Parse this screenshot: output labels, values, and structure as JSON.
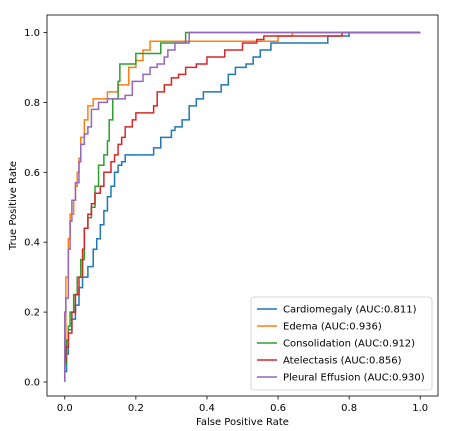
{
  "chart_data": {
    "type": "line",
    "xlabel": "False Positive Rate",
    "ylabel": "True Positive Rate",
    "xlim": [
      -0.05,
      1.05
    ],
    "ylim": [
      -0.04,
      1.05
    ],
    "xticks": [
      0.0,
      0.2,
      0.4,
      0.6,
      0.8,
      1.0
    ],
    "yticks": [
      0.0,
      0.2,
      0.4,
      0.6,
      0.8,
      1.0
    ],
    "xtick_labels": [
      "0.0",
      "0.2",
      "0.4",
      "0.6",
      "0.8",
      "1.0"
    ],
    "ytick_labels": [
      "0.0",
      "0.2",
      "0.4",
      "0.6",
      "0.8",
      "1.0"
    ],
    "grid": false,
    "legend_position": "lower-right",
    "series": [
      {
        "name": "Cardiomegaly (AUC:0.811)",
        "color": "#1f77b4",
        "points": [
          [
            0.0,
            0.0
          ],
          [
            0.0,
            0.03
          ],
          [
            0.005,
            0.03
          ],
          [
            0.005,
            0.08
          ],
          [
            0.01,
            0.08
          ],
          [
            0.01,
            0.15
          ],
          [
            0.02,
            0.15
          ],
          [
            0.02,
            0.18
          ],
          [
            0.03,
            0.18
          ],
          [
            0.03,
            0.22
          ],
          [
            0.04,
            0.22
          ],
          [
            0.04,
            0.27
          ],
          [
            0.05,
            0.27
          ],
          [
            0.05,
            0.3
          ],
          [
            0.065,
            0.3
          ],
          [
            0.065,
            0.33
          ],
          [
            0.08,
            0.33
          ],
          [
            0.08,
            0.38
          ],
          [
            0.09,
            0.38
          ],
          [
            0.09,
            0.41
          ],
          [
            0.1,
            0.41
          ],
          [
            0.1,
            0.45
          ],
          [
            0.11,
            0.45
          ],
          [
            0.11,
            0.49
          ],
          [
            0.12,
            0.49
          ],
          [
            0.12,
            0.53
          ],
          [
            0.13,
            0.53
          ],
          [
            0.13,
            0.56
          ],
          [
            0.14,
            0.56
          ],
          [
            0.14,
            0.6
          ],
          [
            0.15,
            0.6
          ],
          [
            0.15,
            0.62
          ],
          [
            0.16,
            0.62
          ],
          [
            0.16,
            0.63
          ],
          [
            0.17,
            0.63
          ],
          [
            0.17,
            0.65
          ],
          [
            0.25,
            0.65
          ],
          [
            0.25,
            0.67
          ],
          [
            0.27,
            0.67
          ],
          [
            0.27,
            0.7
          ],
          [
            0.3,
            0.7
          ],
          [
            0.3,
            0.72
          ],
          [
            0.31,
            0.72
          ],
          [
            0.31,
            0.73
          ],
          [
            0.33,
            0.73
          ],
          [
            0.33,
            0.75
          ],
          [
            0.35,
            0.75
          ],
          [
            0.35,
            0.79
          ],
          [
            0.37,
            0.79
          ],
          [
            0.37,
            0.81
          ],
          [
            0.39,
            0.81
          ],
          [
            0.39,
            0.83
          ],
          [
            0.44,
            0.83
          ],
          [
            0.44,
            0.85
          ],
          [
            0.46,
            0.85
          ],
          [
            0.46,
            0.88
          ],
          [
            0.48,
            0.88
          ],
          [
            0.48,
            0.9
          ],
          [
            0.51,
            0.9
          ],
          [
            0.51,
            0.91
          ],
          [
            0.53,
            0.91
          ],
          [
            0.53,
            0.93
          ],
          [
            0.55,
            0.93
          ],
          [
            0.55,
            0.95
          ],
          [
            0.58,
            0.95
          ],
          [
            0.58,
            0.97
          ],
          [
            0.74,
            0.97
          ],
          [
            0.74,
            0.99
          ],
          [
            0.8,
            0.99
          ],
          [
            0.8,
            1.0
          ],
          [
            1.0,
            1.0
          ]
        ]
      },
      {
        "name": "Edema (AUC:0.936)",
        "color": "#ff7f0e",
        "points": [
          [
            0.0,
            0.0
          ],
          [
            0.0,
            0.05
          ],
          [
            0.003,
            0.05
          ],
          [
            0.003,
            0.3
          ],
          [
            0.01,
            0.3
          ],
          [
            0.01,
            0.41
          ],
          [
            0.015,
            0.41
          ],
          [
            0.015,
            0.48
          ],
          [
            0.025,
            0.48
          ],
          [
            0.025,
            0.52
          ],
          [
            0.03,
            0.52
          ],
          [
            0.03,
            0.56
          ],
          [
            0.035,
            0.56
          ],
          [
            0.035,
            0.6
          ],
          [
            0.04,
            0.6
          ],
          [
            0.04,
            0.64
          ],
          [
            0.045,
            0.64
          ],
          [
            0.045,
            0.7
          ],
          [
            0.055,
            0.7
          ],
          [
            0.055,
            0.75
          ],
          [
            0.065,
            0.75
          ],
          [
            0.065,
            0.79
          ],
          [
            0.08,
            0.79
          ],
          [
            0.08,
            0.81
          ],
          [
            0.12,
            0.81
          ],
          [
            0.12,
            0.83
          ],
          [
            0.15,
            0.83
          ],
          [
            0.15,
            0.85
          ],
          [
            0.18,
            0.85
          ],
          [
            0.18,
            0.9
          ],
          [
            0.2,
            0.9
          ],
          [
            0.2,
            0.92
          ],
          [
            0.22,
            0.92
          ],
          [
            0.22,
            0.95
          ],
          [
            0.24,
            0.95
          ],
          [
            0.24,
            0.975
          ],
          [
            0.6,
            0.975
          ],
          [
            0.6,
            0.99
          ],
          [
            0.64,
            0.99
          ],
          [
            0.64,
            1.0
          ],
          [
            1.0,
            1.0
          ]
        ]
      },
      {
        "name": "Consolidation (AUC:0.912)",
        "color": "#2ca02c",
        "points": [
          [
            0.0,
            0.0
          ],
          [
            0.0,
            0.05
          ],
          [
            0.005,
            0.05
          ],
          [
            0.005,
            0.12
          ],
          [
            0.01,
            0.12
          ],
          [
            0.01,
            0.16
          ],
          [
            0.015,
            0.16
          ],
          [
            0.015,
            0.2
          ],
          [
            0.025,
            0.2
          ],
          [
            0.025,
            0.25
          ],
          [
            0.035,
            0.25
          ],
          [
            0.035,
            0.3
          ],
          [
            0.045,
            0.3
          ],
          [
            0.045,
            0.35
          ],
          [
            0.055,
            0.35
          ],
          [
            0.055,
            0.44
          ],
          [
            0.065,
            0.44
          ],
          [
            0.065,
            0.47
          ],
          [
            0.075,
            0.47
          ],
          [
            0.075,
            0.5
          ],
          [
            0.085,
            0.5
          ],
          [
            0.085,
            0.56
          ],
          [
            0.095,
            0.56
          ],
          [
            0.095,
            0.62
          ],
          [
            0.11,
            0.62
          ],
          [
            0.11,
            0.65
          ],
          [
            0.12,
            0.65
          ],
          [
            0.12,
            0.69
          ],
          [
            0.125,
            0.69
          ],
          [
            0.125,
            0.75
          ],
          [
            0.135,
            0.75
          ],
          [
            0.135,
            0.81
          ],
          [
            0.15,
            0.81
          ],
          [
            0.15,
            0.86
          ],
          [
            0.155,
            0.86
          ],
          [
            0.155,
            0.91
          ],
          [
            0.2,
            0.91
          ],
          [
            0.2,
            0.94
          ],
          [
            0.27,
            0.94
          ],
          [
            0.27,
            0.97
          ],
          [
            0.34,
            0.97
          ],
          [
            0.34,
            1.0
          ],
          [
            1.0,
            1.0
          ]
        ]
      },
      {
        "name": "Atelectasis (AUC:0.856)",
        "color": "#d62728",
        "points": [
          [
            0.0,
            0.0
          ],
          [
            0.0,
            0.06
          ],
          [
            0.003,
            0.06
          ],
          [
            0.003,
            0.1
          ],
          [
            0.01,
            0.1
          ],
          [
            0.01,
            0.14
          ],
          [
            0.02,
            0.14
          ],
          [
            0.02,
            0.2
          ],
          [
            0.03,
            0.2
          ],
          [
            0.03,
            0.25
          ],
          [
            0.04,
            0.25
          ],
          [
            0.04,
            0.3
          ],
          [
            0.05,
            0.3
          ],
          [
            0.05,
            0.38
          ],
          [
            0.055,
            0.38
          ],
          [
            0.055,
            0.44
          ],
          [
            0.065,
            0.44
          ],
          [
            0.065,
            0.48
          ],
          [
            0.075,
            0.48
          ],
          [
            0.075,
            0.51
          ],
          [
            0.085,
            0.51
          ],
          [
            0.085,
            0.54
          ],
          [
            0.1,
            0.54
          ],
          [
            0.1,
            0.56
          ],
          [
            0.11,
            0.56
          ],
          [
            0.11,
            0.6
          ],
          [
            0.13,
            0.6
          ],
          [
            0.13,
            0.63
          ],
          [
            0.14,
            0.63
          ],
          [
            0.14,
            0.65
          ],
          [
            0.15,
            0.65
          ],
          [
            0.15,
            0.68
          ],
          [
            0.16,
            0.68
          ],
          [
            0.16,
            0.7
          ],
          [
            0.17,
            0.7
          ],
          [
            0.17,
            0.73
          ],
          [
            0.19,
            0.73
          ],
          [
            0.19,
            0.75
          ],
          [
            0.2,
            0.75
          ],
          [
            0.2,
            0.77
          ],
          [
            0.25,
            0.77
          ],
          [
            0.25,
            0.79
          ],
          [
            0.26,
            0.79
          ],
          [
            0.26,
            0.83
          ],
          [
            0.28,
            0.83
          ],
          [
            0.28,
            0.85
          ],
          [
            0.3,
            0.85
          ],
          [
            0.3,
            0.87
          ],
          [
            0.32,
            0.87
          ],
          [
            0.32,
            0.88
          ],
          [
            0.34,
            0.88
          ],
          [
            0.34,
            0.9
          ],
          [
            0.37,
            0.9
          ],
          [
            0.37,
            0.91
          ],
          [
            0.4,
            0.91
          ],
          [
            0.4,
            0.93
          ],
          [
            0.45,
            0.93
          ],
          [
            0.45,
            0.95
          ],
          [
            0.5,
            0.95
          ],
          [
            0.5,
            0.97
          ],
          [
            0.54,
            0.97
          ],
          [
            0.54,
            0.98
          ],
          [
            0.56,
            0.98
          ],
          [
            0.56,
            0.99
          ],
          [
            0.78,
            0.99
          ],
          [
            0.78,
            1.0
          ],
          [
            1.0,
            1.0
          ]
        ]
      },
      {
        "name": "Pleural Effusion (AUC:0.930)",
        "color": "#9467bd",
        "points": [
          [
            0.0,
            0.0
          ],
          [
            0.0,
            0.2
          ],
          [
            0.003,
            0.2
          ],
          [
            0.003,
            0.24
          ],
          [
            0.01,
            0.24
          ],
          [
            0.01,
            0.38
          ],
          [
            0.015,
            0.38
          ],
          [
            0.015,
            0.46
          ],
          [
            0.02,
            0.46
          ],
          [
            0.02,
            0.52
          ],
          [
            0.03,
            0.52
          ],
          [
            0.03,
            0.57
          ],
          [
            0.04,
            0.57
          ],
          [
            0.04,
            0.63
          ],
          [
            0.045,
            0.63
          ],
          [
            0.045,
            0.68
          ],
          [
            0.055,
            0.68
          ],
          [
            0.055,
            0.71
          ],
          [
            0.065,
            0.71
          ],
          [
            0.065,
            0.73
          ],
          [
            0.075,
            0.73
          ],
          [
            0.075,
            0.78
          ],
          [
            0.095,
            0.78
          ],
          [
            0.095,
            0.8
          ],
          [
            0.12,
            0.8
          ],
          [
            0.12,
            0.81
          ],
          [
            0.17,
            0.81
          ],
          [
            0.17,
            0.82
          ],
          [
            0.19,
            0.82
          ],
          [
            0.19,
            0.86
          ],
          [
            0.22,
            0.86
          ],
          [
            0.22,
            0.88
          ],
          [
            0.24,
            0.88
          ],
          [
            0.24,
            0.9
          ],
          [
            0.26,
            0.9
          ],
          [
            0.26,
            0.91
          ],
          [
            0.28,
            0.91
          ],
          [
            0.28,
            0.93
          ],
          [
            0.29,
            0.93
          ],
          [
            0.29,
            0.95
          ],
          [
            0.31,
            0.95
          ],
          [
            0.31,
            0.97
          ],
          [
            0.35,
            0.97
          ],
          [
            0.35,
            1.0
          ],
          [
            1.0,
            1.0
          ]
        ]
      }
    ]
  }
}
